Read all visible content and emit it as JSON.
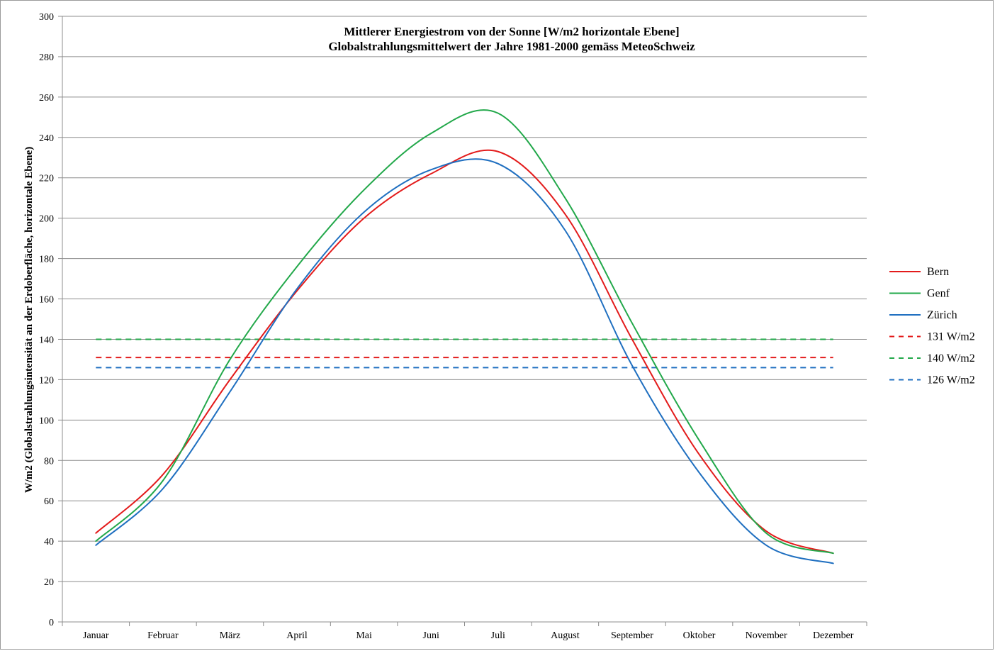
{
  "chart_data": {
    "type": "line",
    "title": "Mittlerer Energiestrom von der Sonne [W/m2 horizontale Ebene]",
    "subtitle": "Globalstrahlungsmittelwert der Jahre 1981-2000 gemäss MeteoSchweiz",
    "xlabel": "",
    "ylabel": "W/m2 (Globalstrahlungsintensität an der Erdoberfläche, horizontale Ebene)",
    "categories": [
      "Januar",
      "Februar",
      "März",
      "April",
      "Mai",
      "Juni",
      "Juli",
      "August",
      "September",
      "Oktober",
      "November",
      "Dezember"
    ],
    "ylim": [
      0,
      300
    ],
    "yticks": [
      0,
      20,
      40,
      60,
      80,
      100,
      120,
      140,
      160,
      180,
      200,
      220,
      240,
      260,
      280,
      300
    ],
    "grid": true,
    "legend_position": "right",
    "series": [
      {
        "name": "Bern",
        "color": "#e31b1b",
        "style": "solid",
        "values": [
          44,
          73,
          120,
          164,
          200,
          222,
          233,
          202,
          140,
          83,
          45,
          34
        ]
      },
      {
        "name": "Genf",
        "color": "#22a84a",
        "style": "solid",
        "values": [
          40,
          70,
          130,
          176,
          214,
          242,
          252,
          210,
          148,
          90,
          44,
          34
        ]
      },
      {
        "name": "Zürich",
        "color": "#1f6fc0",
        "style": "solid",
        "values": [
          38,
          66,
          114,
          165,
          203,
          224,
          227,
          194,
          127,
          74,
          38,
          29
        ]
      },
      {
        "name": "131 W/m2",
        "color": "#e31b1b",
        "style": "dashed",
        "values": [
          131,
          131,
          131,
          131,
          131,
          131,
          131,
          131,
          131,
          131,
          131,
          131
        ]
      },
      {
        "name": "140 W/m2",
        "color": "#22a84a",
        "style": "dashed",
        "values": [
          140,
          140,
          140,
          140,
          140,
          140,
          140,
          140,
          140,
          140,
          140,
          140
        ]
      },
      {
        "name": "126 W/m2",
        "color": "#1f6fc0",
        "style": "dashed",
        "values": [
          126,
          126,
          126,
          126,
          126,
          126,
          126,
          126,
          126,
          126,
          126,
          126
        ]
      }
    ]
  }
}
